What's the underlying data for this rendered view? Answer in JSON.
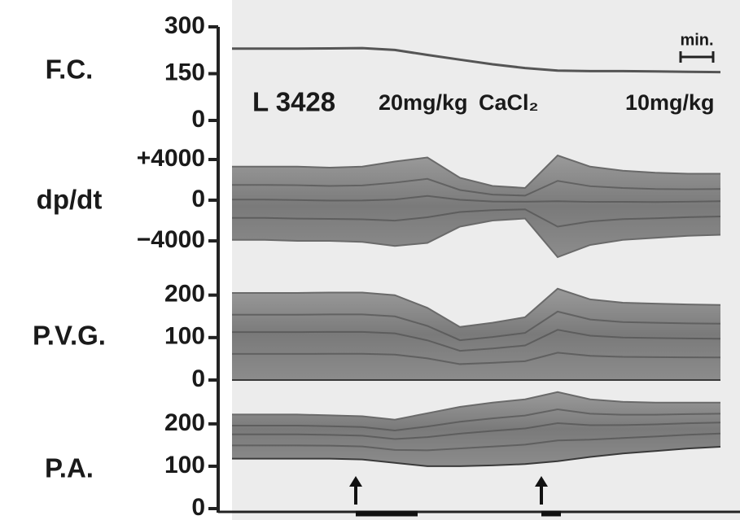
{
  "chart_data": [
    {
      "type": "line",
      "ylabel": "F.C.",
      "ylim": [
        0,
        300
      ],
      "yticks": [
        0,
        150,
        300
      ],
      "xlim": [
        0,
        15.6
      ],
      "x": [
        0,
        1,
        2,
        3,
        4,
        5,
        6,
        7,
        8,
        9,
        10,
        11,
        12,
        13,
        14,
        15
      ],
      "series": [
        {
          "color": "#555555",
          "values": [
            230,
            230,
            230,
            231,
            232,
            226,
            210,
            195,
            180,
            168,
            160,
            158,
            158,
            157,
            156,
            155
          ]
        }
      ],
      "annotations": [
        "L 3428",
        "20mg/kg",
        "CaCl₂",
        "10mg/kg"
      ],
      "scale_bar": {
        "label": "min.",
        "value": 1
      }
    },
    {
      "type": "band",
      "ylabel": "dp/dt",
      "ylim": [
        -6000,
        6000
      ],
      "yticks": [
        {
          "value": 4000,
          "label": "+4000"
        },
        0,
        {
          "value": -4000,
          "label": "−4000"
        }
      ],
      "xlim": [
        0,
        15.6
      ],
      "x": [
        0,
        1,
        2,
        3,
        4,
        5,
        6,
        7,
        8,
        9,
        10,
        11,
        12,
        13,
        14,
        15
      ],
      "series": [
        {
          "color": "#6a6a6a",
          "values": [
            3300,
            3300,
            3300,
            3200,
            3300,
            3800,
            4200,
            2200,
            1400,
            1200,
            4400,
            3300,
            2900,
            2700,
            2600,
            2600
          ]
        },
        {
          "color": "#6a6a6a",
          "values": [
            -3900,
            -3900,
            -4000,
            -4000,
            -4100,
            -4500,
            -4200,
            -2600,
            -2000,
            -1800,
            -5600,
            -4400,
            -3900,
            -3700,
            -3500,
            -3400
          ]
        }
      ]
    },
    {
      "type": "band",
      "ylabel": "P.V.G.",
      "ylim": [
        0,
        230
      ],
      "yticks": [
        0,
        100,
        200
      ],
      "xlim": [
        0,
        15.6
      ],
      "x": [
        0,
        1,
        2,
        3,
        4,
        5,
        6,
        7,
        8,
        9,
        10,
        11,
        12,
        13,
        14,
        15
      ],
      "series": [
        {
          "color": "#6a6a6a",
          "values": [
            205,
            205,
            205,
            206,
            206,
            200,
            170,
            125,
            135,
            148,
            215,
            190,
            182,
            180,
            178,
            177
          ]
        },
        {
          "color": "#3a3a3a",
          "values": [
            0,
            0,
            0,
            0,
            0,
            0,
            0,
            0,
            0,
            0,
            0,
            0,
            0,
            0,
            0,
            0
          ]
        }
      ]
    },
    {
      "type": "band",
      "ylabel": "P.A.",
      "ylim": [
        0,
        290
      ],
      "yticks": [
        0,
        100,
        200
      ],
      "xlim": [
        0,
        15.6
      ],
      "x": [
        0,
        1,
        2,
        3,
        4,
        5,
        6,
        7,
        8,
        9,
        10,
        11,
        12,
        13,
        14,
        15
      ],
      "series": [
        {
          "color": "#6a6a6a",
          "values": [
            222,
            222,
            222,
            220,
            218,
            210,
            225,
            240,
            250,
            258,
            275,
            258,
            252,
            250,
            250,
            250
          ]
        },
        {
          "color": "#3a3a3a",
          "values": [
            118,
            118,
            118,
            118,
            116,
            108,
            100,
            100,
            102,
            105,
            112,
            122,
            130,
            136,
            142,
            146
          ]
        }
      ],
      "injections": [
        {
          "start": 3.8,
          "end": 5.7
        },
        {
          "start": 9.5,
          "end": 10.1
        }
      ]
    }
  ]
}
